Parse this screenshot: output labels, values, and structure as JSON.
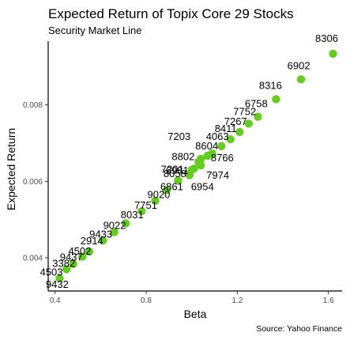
{
  "chart_data": {
    "type": "scatter",
    "title": "Expected Return of Topix Core 29 Stocks",
    "subtitle": "Security Market Line",
    "xlabel": "Beta",
    "ylabel": "Expected Return",
    "caption": "Source: Yahoo Finance",
    "xlim": [
      0.37,
      1.66
    ],
    "ylim": [
      0.00313,
      0.00967
    ],
    "xticks": [
      {
        "value": 0.4,
        "label": "0.4"
      },
      {
        "value": 0.8,
        "label": "0.8"
      },
      {
        "value": 1.2,
        "label": "1.2"
      },
      {
        "value": 1.6,
        "label": "1.6"
      }
    ],
    "yticks": [
      {
        "value": 0.004,
        "label": "0.004"
      },
      {
        "value": 0.006,
        "label": "0.006"
      },
      {
        "value": 0.008,
        "label": "0.008"
      }
    ],
    "grid": false,
    "point_color": "#66cc22",
    "points": [
      {
        "label": "8306",
        "x": 1.62,
        "y": 0.00934
      },
      {
        "label": "6902",
        "x": 1.48,
        "y": 0.00867
      },
      {
        "label": "8316",
        "x": 1.37,
        "y": 0.00815
      },
      {
        "label": "6758",
        "x": 1.29,
        "y": 0.00769
      },
      {
        "label": "7752",
        "x": 1.25,
        "y": 0.00751
      },
      {
        "label": "7267",
        "x": 1.21,
        "y": 0.00729
      },
      {
        "label": "8411",
        "x": 1.17,
        "y": 0.0071
      },
      {
        "label": "4063",
        "x": 1.13,
        "y": 0.00692
      },
      {
        "label": "8604",
        "x": 1.09,
        "y": 0.00673
      },
      {
        "label": "7203",
        "x": 1.04,
        "y": 0.00659
      },
      {
        "label": "8766",
        "x": 1.07,
        "y": 0.00667
      },
      {
        "label": "8802",
        "x": 1.03,
        "y": 0.00651
      },
      {
        "label": "7974",
        "x": 1.04,
        "y": 0.00642
      },
      {
        "label": "7201",
        "x": 1.01,
        "y": 0.00633
      },
      {
        "label": "6981",
        "x": 1.0,
        "y": 0.0063
      },
      {
        "label": "8058",
        "x": 0.99,
        "y": 0.00621
      },
      {
        "label": "6954",
        "x": 0.99,
        "y": 0.00616
      },
      {
        "label": "6861",
        "x": 0.94,
        "y": 0.00602
      },
      {
        "label": "9020",
        "x": 0.89,
        "y": 0.00577
      },
      {
        "label": "7751",
        "x": 0.84,
        "y": 0.00549
      },
      {
        "label": "8031",
        "x": 0.78,
        "y": 0.00522
      },
      {
        "label": "9022",
        "x": 0.71,
        "y": 0.0049
      },
      {
        "label": "9433",
        "x": 0.66,
        "y": 0.00467
      },
      {
        "label": "2914",
        "x": 0.61,
        "y": 0.00445
      },
      {
        "label": "4502",
        "x": 0.55,
        "y": 0.00416
      },
      {
        "label": "9437",
        "x": 0.52,
        "y": 0.00403
      },
      {
        "label": "3382",
        "x": 0.48,
        "y": 0.00384
      },
      {
        "label": "4503",
        "x": 0.45,
        "y": 0.0037
      },
      {
        "label": "9432",
        "x": 0.42,
        "y": 0.00346
      }
    ]
  }
}
